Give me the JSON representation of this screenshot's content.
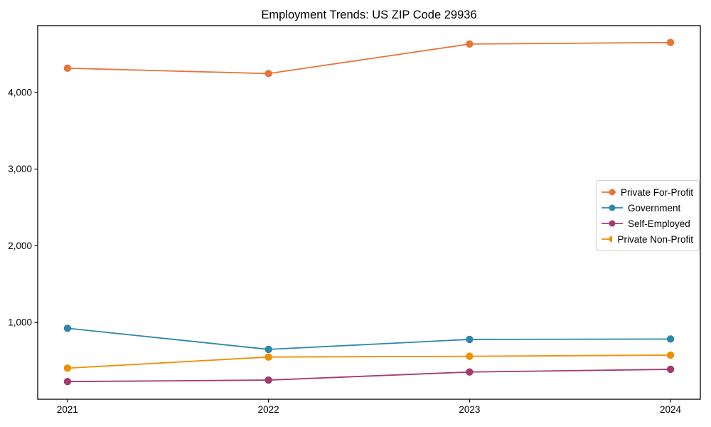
{
  "title": "Employment Trends: US ZIP Code 29936",
  "chart_data": {
    "type": "line",
    "categories": [
      "2021",
      "2022",
      "2023",
      "2024"
    ],
    "series": [
      {
        "name": "Private For-Profit",
        "color": "#E8743B",
        "values": [
          4315,
          4245,
          4630,
          4650
        ]
      },
      {
        "name": "Government",
        "color": "#2E86AB",
        "values": [
          925,
          650,
          780,
          785
        ]
      },
      {
        "name": "Self-Employed",
        "color": "#A23B72",
        "values": [
          230,
          250,
          355,
          390
        ]
      },
      {
        "name": "Private Non-Profit",
        "color": "#F18F01",
        "values": [
          405,
          550,
          560,
          575
        ]
      }
    ],
    "xlabel": "",
    "ylabel": "",
    "ylim": [
      0,
      4870
    ],
    "yticks": [
      1000,
      2000,
      3000,
      4000
    ],
    "ytick_labels": [
      "1,000",
      "2,000",
      "3,000",
      "4,000"
    ],
    "grid": false,
    "legend_position": "center-right",
    "marker": "circle",
    "background": "#ffffff",
    "spine_color": "#000000"
  }
}
